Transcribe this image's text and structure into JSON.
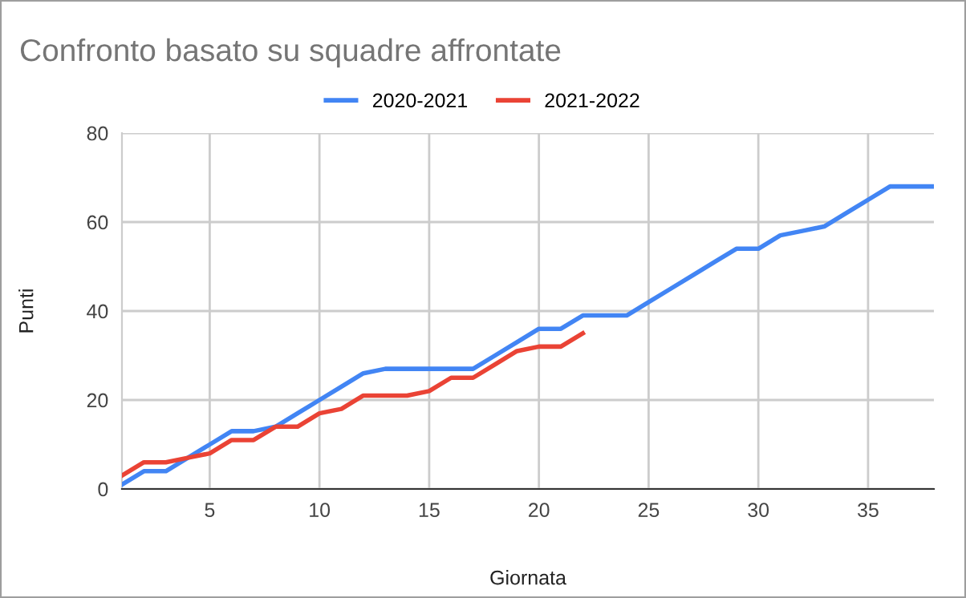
{
  "chart_data": {
    "type": "line",
    "title": "Confronto basato su squadre affrontate",
    "xlabel": "Giornata",
    "ylabel": "Punti",
    "x": [
      1,
      2,
      3,
      4,
      5,
      6,
      7,
      8,
      9,
      10,
      11,
      12,
      13,
      14,
      15,
      16,
      17,
      18,
      19,
      20,
      21,
      22,
      23,
      24,
      25,
      26,
      27,
      28,
      29,
      30,
      31,
      32,
      33,
      34,
      35,
      36,
      37,
      38
    ],
    "series": [
      {
        "name": "2020-2021",
        "color": "#4285f4",
        "values": [
          1,
          4,
          4,
          7,
          10,
          13,
          13,
          14,
          17,
          20,
          23,
          26,
          27,
          27,
          27,
          27,
          27,
          30,
          33,
          36,
          36,
          39,
          39,
          39,
          42,
          45,
          48,
          51,
          54,
          54,
          57,
          58,
          59,
          62,
          65,
          68,
          68,
          68
        ]
      },
      {
        "name": "2021-2022",
        "color": "#ea4335",
        "values": [
          3,
          6,
          6,
          7,
          8,
          11,
          11,
          14,
          14,
          17,
          18,
          21,
          21,
          21,
          22,
          25,
          25,
          28,
          31,
          32,
          32,
          35,
          null,
          null,
          null,
          null,
          null,
          null,
          null,
          null,
          null,
          null,
          null,
          null,
          null,
          null,
          null,
          null
        ]
      }
    ],
    "xlim": [
      1,
      38
    ],
    "xticks": [
      5,
      10,
      15,
      20,
      25,
      30,
      35
    ],
    "ylim": [
      0,
      80
    ],
    "yticks": [
      0,
      20,
      40,
      60,
      80
    ],
    "grid": true,
    "legend": "top",
    "marker": "none",
    "line_style": "solid"
  }
}
